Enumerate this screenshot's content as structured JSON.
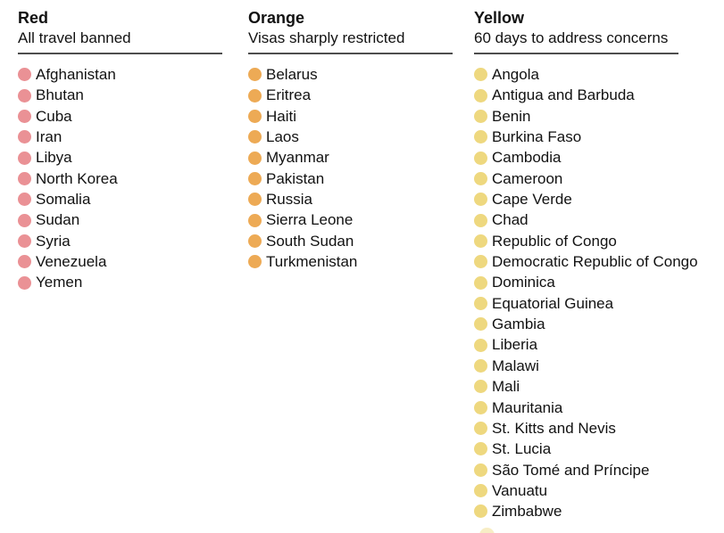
{
  "chart_data": {
    "type": "table",
    "title": "",
    "legend_position": "none",
    "groups": [
      {
        "name": "Red",
        "description": "All travel banned",
        "color": "#ea9195",
        "count": 11,
        "countries": [
          "Afghanistan",
          "Bhutan",
          "Cuba",
          "Iran",
          "Libya",
          "North Korea",
          "Somalia",
          "Sudan",
          "Syria",
          "Venezuela",
          "Yemen"
        ]
      },
      {
        "name": "Orange",
        "description": "Visas sharply restricted",
        "color": "#edaa55",
        "count": 10,
        "countries": [
          "Belarus",
          "Eritrea",
          "Haiti",
          "Laos",
          "Myanmar",
          "Pakistan",
          "Russia",
          "Sierra Leone",
          "South Sudan",
          "Turkmenistan"
        ]
      },
      {
        "name": "Yellow",
        "description": "60 days to address concerns",
        "color": "#eed87f",
        "count": 22,
        "countries": [
          "Angola",
          "Antigua and Barbuda",
          "Benin",
          "Burkina Faso",
          "Cambodia",
          "Cameroon",
          "Cape Verde",
          "Chad",
          "Republic of Congo",
          "Democratic Republic of Congo",
          "Dominica",
          "Equatorial Guinea",
          "Gambia",
          "Liberia",
          "Malawi",
          "Mali",
          "Mauritania",
          "St. Kitts and Nevis",
          "St. Lucia",
          "São Tomé and Príncipe",
          "Vanuatu",
          "Zimbabwe"
        ]
      }
    ]
  },
  "colors": {
    "background": "#ffffff",
    "text": "#121212",
    "rule": "#4d4d4d"
  }
}
